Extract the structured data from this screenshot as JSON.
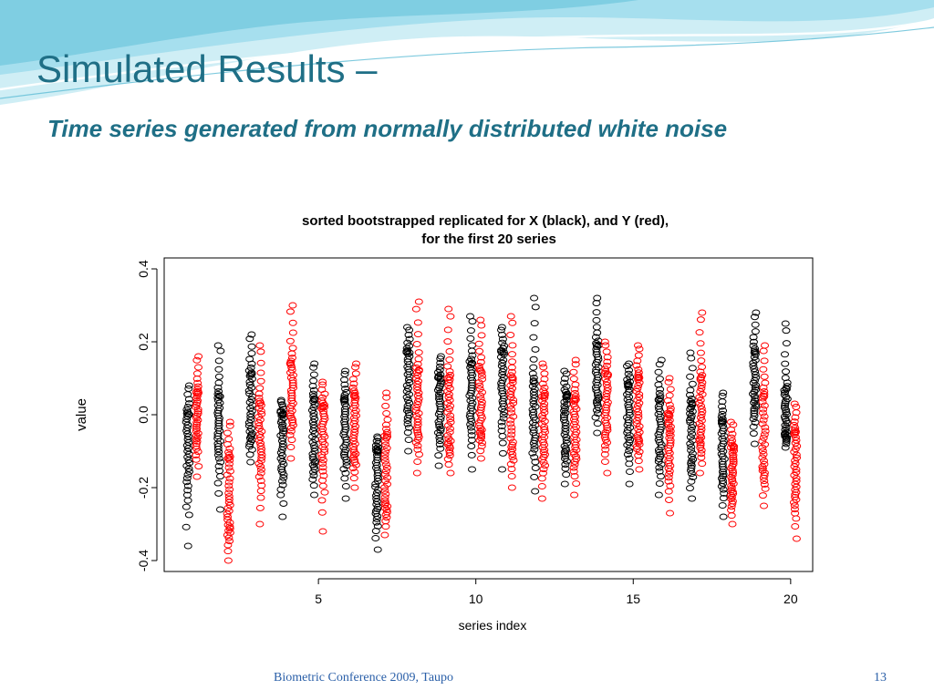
{
  "slide": {
    "title": "Simulated Results –",
    "subtitle": "Time series generated from normally distributed white noise",
    "footer": "Biometric Conference 2009, Taupo",
    "page_number": "13"
  },
  "colors": {
    "accent": "#1f6f86",
    "wave_light": "#cfeef5",
    "wave_mid": "#8fd5e6",
    "series_x": "#000000",
    "series_y": "#ff0000"
  },
  "chart_data": {
    "type": "scatter",
    "title": "sorted bootstrapped replicated for X (black), and Y (red),",
    "subtitle": "for the first 20 series",
    "xlabel": "series index",
    "ylabel": "value",
    "xlim": [
      0.1,
      20.7
    ],
    "ylim": [
      -0.43,
      0.43
    ],
    "xticks": [
      5,
      10,
      15,
      20
    ],
    "yticks": [
      -0.4,
      -0.2,
      0.0,
      0.2,
      0.4
    ],
    "xtick_labels": [
      "5",
      "10",
      "15",
      "20"
    ],
    "ytick_labels": [
      "-0.4",
      "-0.2",
      "0.0",
      "0.2",
      "0.4"
    ],
    "grid": false,
    "series": [
      {
        "name": "X",
        "color": "#000000",
        "x": [
          1,
          2,
          3,
          4,
          5,
          6,
          7,
          8,
          9,
          10,
          11,
          12,
          13,
          14,
          15,
          16,
          17,
          18,
          19,
          20
        ],
        "min": [
          -0.36,
          -0.26,
          -0.13,
          -0.28,
          -0.22,
          -0.23,
          -0.37,
          -0.1,
          -0.14,
          -0.15,
          -0.15,
          -0.21,
          -0.19,
          -0.05,
          -0.19,
          -0.22,
          -0.23,
          -0.28,
          -0.08,
          -0.09
        ],
        "q1": [
          -0.16,
          -0.09,
          -0.05,
          -0.14,
          -0.12,
          -0.1,
          -0.25,
          0.02,
          -0.03,
          0.0,
          0.02,
          -0.06,
          -0.09,
          0.05,
          -0.06,
          -0.1,
          -0.12,
          -0.16,
          0.03,
          -0.05
        ],
        "median": [
          -0.08,
          -0.02,
          0.03,
          -0.06,
          -0.04,
          -0.03,
          -0.17,
          0.1,
          0.04,
          0.07,
          0.09,
          0.01,
          -0.01,
          0.12,
          0.01,
          -0.03,
          -0.03,
          -0.09,
          0.09,
          0.01
        ],
        "q3": [
          0.0,
          0.05,
          0.11,
          0.0,
          0.04,
          0.04,
          -0.1,
          0.17,
          0.1,
          0.14,
          0.17,
          0.09,
          0.05,
          0.19,
          0.08,
          0.04,
          0.03,
          -0.02,
          0.17,
          0.07
        ],
        "max": [
          0.08,
          0.19,
          0.22,
          0.04,
          0.14,
          0.12,
          -0.06,
          0.24,
          0.16,
          0.27,
          0.24,
          0.32,
          0.12,
          0.32,
          0.14,
          0.15,
          0.17,
          0.06,
          0.28,
          0.25
        ]
      },
      {
        "name": "Y",
        "color": "#ff0000",
        "x": [
          1,
          2,
          3,
          4,
          5,
          6,
          7,
          8,
          9,
          10,
          11,
          12,
          13,
          14,
          15,
          16,
          17,
          18,
          19,
          20
        ],
        "min": [
          -0.17,
          -0.4,
          -0.3,
          -0.12,
          -0.32,
          -0.2,
          -0.33,
          -0.16,
          -0.16,
          -0.12,
          -0.2,
          -0.23,
          -0.22,
          -0.16,
          -0.15,
          -0.27,
          -0.16,
          -0.3,
          -0.25,
          -0.34
        ],
        "q1": [
          -0.06,
          -0.3,
          -0.13,
          0.0,
          -0.12,
          -0.1,
          -0.24,
          -0.04,
          -0.07,
          -0.04,
          -0.08,
          -0.1,
          -0.1,
          -0.04,
          -0.06,
          -0.13,
          -0.06,
          -0.21,
          -0.14,
          -0.21
        ],
        "median": [
          0.0,
          -0.22,
          -0.05,
          0.07,
          -0.05,
          -0.02,
          -0.15,
          0.04,
          0.02,
          0.03,
          0.02,
          -0.03,
          -0.03,
          0.03,
          0.02,
          -0.06,
          0.02,
          -0.15,
          -0.05,
          -0.13
        ],
        "q3": [
          0.06,
          -0.12,
          0.03,
          0.14,
          0.02,
          0.05,
          -0.06,
          0.12,
          0.1,
          0.12,
          0.1,
          0.05,
          0.04,
          0.11,
          0.1,
          0.0,
          0.1,
          -0.09,
          0.05,
          -0.05
        ],
        "max": [
          0.16,
          -0.02,
          0.19,
          0.3,
          0.09,
          0.14,
          0.06,
          0.31,
          0.29,
          0.26,
          0.27,
          0.14,
          0.15,
          0.2,
          0.19,
          0.1,
          0.28,
          -0.02,
          0.19,
          0.03
        ]
      }
    ]
  }
}
